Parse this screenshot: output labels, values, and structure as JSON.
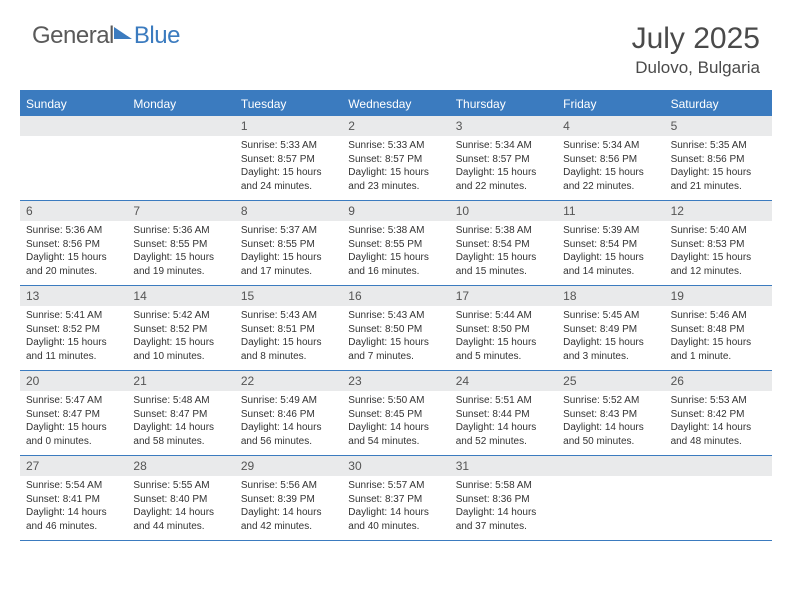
{
  "brand": {
    "part1": "General",
    "part2": "Blue"
  },
  "title": "July 2025",
  "location": "Dulovo, Bulgaria",
  "colors": {
    "accent": "#3b7bbf",
    "header_bg": "#3b7bbf",
    "daynum_bg": "#e9eaeb",
    "text": "#333333",
    "title_text": "#4a4a4a",
    "logo_gray": "#5a5a5a"
  },
  "weekdays": [
    "Sunday",
    "Monday",
    "Tuesday",
    "Wednesday",
    "Thursday",
    "Friday",
    "Saturday"
  ],
  "weeks": [
    [
      {
        "empty": true
      },
      {
        "empty": true
      },
      {
        "day": "1",
        "sunrise": "Sunrise: 5:33 AM",
        "sunset": "Sunset: 8:57 PM",
        "daylight1": "Daylight: 15 hours",
        "daylight2": "and 24 minutes."
      },
      {
        "day": "2",
        "sunrise": "Sunrise: 5:33 AM",
        "sunset": "Sunset: 8:57 PM",
        "daylight1": "Daylight: 15 hours",
        "daylight2": "and 23 minutes."
      },
      {
        "day": "3",
        "sunrise": "Sunrise: 5:34 AM",
        "sunset": "Sunset: 8:57 PM",
        "daylight1": "Daylight: 15 hours",
        "daylight2": "and 22 minutes."
      },
      {
        "day": "4",
        "sunrise": "Sunrise: 5:34 AM",
        "sunset": "Sunset: 8:56 PM",
        "daylight1": "Daylight: 15 hours",
        "daylight2": "and 22 minutes."
      },
      {
        "day": "5",
        "sunrise": "Sunrise: 5:35 AM",
        "sunset": "Sunset: 8:56 PM",
        "daylight1": "Daylight: 15 hours",
        "daylight2": "and 21 minutes."
      }
    ],
    [
      {
        "day": "6",
        "sunrise": "Sunrise: 5:36 AM",
        "sunset": "Sunset: 8:56 PM",
        "daylight1": "Daylight: 15 hours",
        "daylight2": "and 20 minutes."
      },
      {
        "day": "7",
        "sunrise": "Sunrise: 5:36 AM",
        "sunset": "Sunset: 8:55 PM",
        "daylight1": "Daylight: 15 hours",
        "daylight2": "and 19 minutes."
      },
      {
        "day": "8",
        "sunrise": "Sunrise: 5:37 AM",
        "sunset": "Sunset: 8:55 PM",
        "daylight1": "Daylight: 15 hours",
        "daylight2": "and 17 minutes."
      },
      {
        "day": "9",
        "sunrise": "Sunrise: 5:38 AM",
        "sunset": "Sunset: 8:55 PM",
        "daylight1": "Daylight: 15 hours",
        "daylight2": "and 16 minutes."
      },
      {
        "day": "10",
        "sunrise": "Sunrise: 5:38 AM",
        "sunset": "Sunset: 8:54 PM",
        "daylight1": "Daylight: 15 hours",
        "daylight2": "and 15 minutes."
      },
      {
        "day": "11",
        "sunrise": "Sunrise: 5:39 AM",
        "sunset": "Sunset: 8:54 PM",
        "daylight1": "Daylight: 15 hours",
        "daylight2": "and 14 minutes."
      },
      {
        "day": "12",
        "sunrise": "Sunrise: 5:40 AM",
        "sunset": "Sunset: 8:53 PM",
        "daylight1": "Daylight: 15 hours",
        "daylight2": "and 12 minutes."
      }
    ],
    [
      {
        "day": "13",
        "sunrise": "Sunrise: 5:41 AM",
        "sunset": "Sunset: 8:52 PM",
        "daylight1": "Daylight: 15 hours",
        "daylight2": "and 11 minutes."
      },
      {
        "day": "14",
        "sunrise": "Sunrise: 5:42 AM",
        "sunset": "Sunset: 8:52 PM",
        "daylight1": "Daylight: 15 hours",
        "daylight2": "and 10 minutes."
      },
      {
        "day": "15",
        "sunrise": "Sunrise: 5:43 AM",
        "sunset": "Sunset: 8:51 PM",
        "daylight1": "Daylight: 15 hours",
        "daylight2": "and 8 minutes."
      },
      {
        "day": "16",
        "sunrise": "Sunrise: 5:43 AM",
        "sunset": "Sunset: 8:50 PM",
        "daylight1": "Daylight: 15 hours",
        "daylight2": "and 7 minutes."
      },
      {
        "day": "17",
        "sunrise": "Sunrise: 5:44 AM",
        "sunset": "Sunset: 8:50 PM",
        "daylight1": "Daylight: 15 hours",
        "daylight2": "and 5 minutes."
      },
      {
        "day": "18",
        "sunrise": "Sunrise: 5:45 AM",
        "sunset": "Sunset: 8:49 PM",
        "daylight1": "Daylight: 15 hours",
        "daylight2": "and 3 minutes."
      },
      {
        "day": "19",
        "sunrise": "Sunrise: 5:46 AM",
        "sunset": "Sunset: 8:48 PM",
        "daylight1": "Daylight: 15 hours",
        "daylight2": "and 1 minute."
      }
    ],
    [
      {
        "day": "20",
        "sunrise": "Sunrise: 5:47 AM",
        "sunset": "Sunset: 8:47 PM",
        "daylight1": "Daylight: 15 hours",
        "daylight2": "and 0 minutes."
      },
      {
        "day": "21",
        "sunrise": "Sunrise: 5:48 AM",
        "sunset": "Sunset: 8:47 PM",
        "daylight1": "Daylight: 14 hours",
        "daylight2": "and 58 minutes."
      },
      {
        "day": "22",
        "sunrise": "Sunrise: 5:49 AM",
        "sunset": "Sunset: 8:46 PM",
        "daylight1": "Daylight: 14 hours",
        "daylight2": "and 56 minutes."
      },
      {
        "day": "23",
        "sunrise": "Sunrise: 5:50 AM",
        "sunset": "Sunset: 8:45 PM",
        "daylight1": "Daylight: 14 hours",
        "daylight2": "and 54 minutes."
      },
      {
        "day": "24",
        "sunrise": "Sunrise: 5:51 AM",
        "sunset": "Sunset: 8:44 PM",
        "daylight1": "Daylight: 14 hours",
        "daylight2": "and 52 minutes."
      },
      {
        "day": "25",
        "sunrise": "Sunrise: 5:52 AM",
        "sunset": "Sunset: 8:43 PM",
        "daylight1": "Daylight: 14 hours",
        "daylight2": "and 50 minutes."
      },
      {
        "day": "26",
        "sunrise": "Sunrise: 5:53 AM",
        "sunset": "Sunset: 8:42 PM",
        "daylight1": "Daylight: 14 hours",
        "daylight2": "and 48 minutes."
      }
    ],
    [
      {
        "day": "27",
        "sunrise": "Sunrise: 5:54 AM",
        "sunset": "Sunset: 8:41 PM",
        "daylight1": "Daylight: 14 hours",
        "daylight2": "and 46 minutes."
      },
      {
        "day": "28",
        "sunrise": "Sunrise: 5:55 AM",
        "sunset": "Sunset: 8:40 PM",
        "daylight1": "Daylight: 14 hours",
        "daylight2": "and 44 minutes."
      },
      {
        "day": "29",
        "sunrise": "Sunrise: 5:56 AM",
        "sunset": "Sunset: 8:39 PM",
        "daylight1": "Daylight: 14 hours",
        "daylight2": "and 42 minutes."
      },
      {
        "day": "30",
        "sunrise": "Sunrise: 5:57 AM",
        "sunset": "Sunset: 8:37 PM",
        "daylight1": "Daylight: 14 hours",
        "daylight2": "and 40 minutes."
      },
      {
        "day": "31",
        "sunrise": "Sunrise: 5:58 AM",
        "sunset": "Sunset: 8:36 PM",
        "daylight1": "Daylight: 14 hours",
        "daylight2": "and 37 minutes."
      },
      {
        "empty": true
      },
      {
        "empty": true
      }
    ]
  ]
}
